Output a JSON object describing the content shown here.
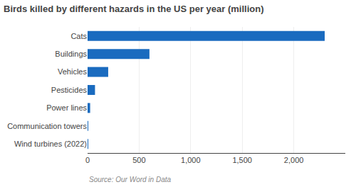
{
  "chart_data": {
    "type": "bar",
    "orientation": "horizontal",
    "title": "Birds killed by different hazards in the US per year (million)",
    "categories": [
      "Wind turbines (2022)",
      "Communication towers",
      "Power lines",
      "Pesticides",
      "Vehicles",
      "Buildings",
      "Cats"
    ],
    "values": [
      1,
      6.8,
      25,
      72,
      200,
      600,
      2300
    ],
    "color": "#1a6bbf",
    "xlim": [
      0,
      2500
    ],
    "xticks": [
      0,
      500,
      {
        "value": 1000,
        "label": "1,000"
      },
      {
        "value": 1500,
        "label": "1,500"
      },
      {
        "value": 2000,
        "label": "2,000"
      }
    ],
    "grid": true,
    "annotation": "Source: Our Word in Data"
  }
}
